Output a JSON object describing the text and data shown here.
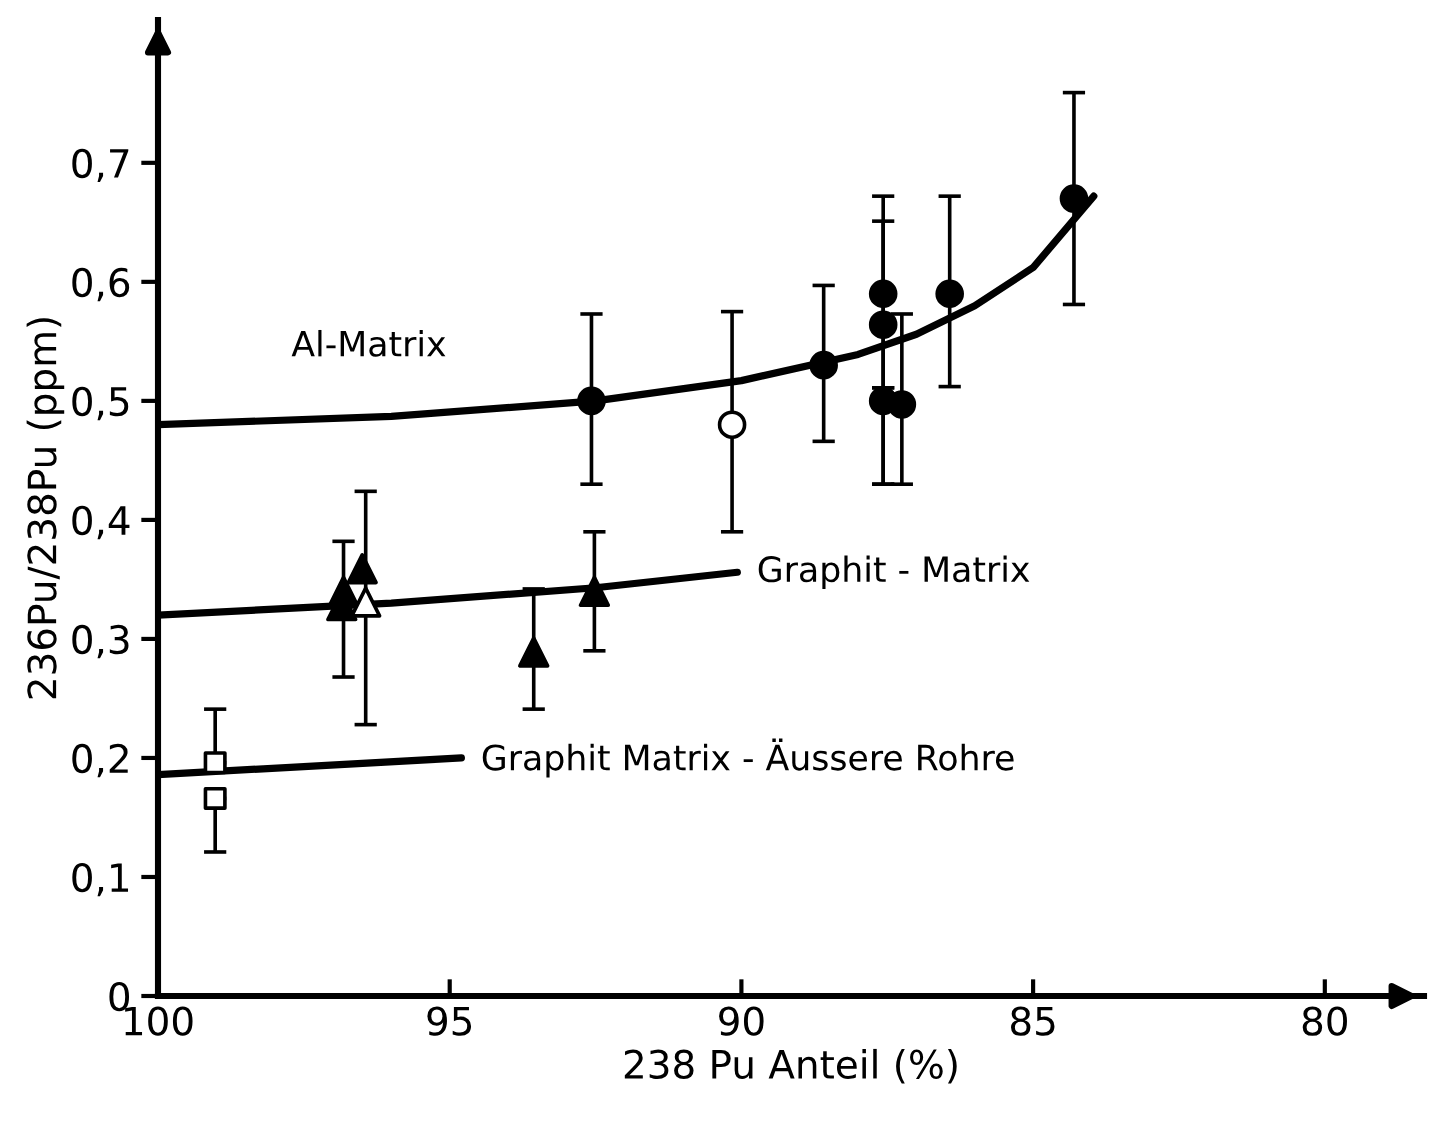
{
  "chart_data": {
    "type": "scatter",
    "xlabel": "238 Pu Anteil (%)",
    "ylabel": "236Pu/238Pu (ppm)",
    "xlim": [
      100,
      78.3
    ],
    "ylim": [
      0,
      0.82
    ],
    "xticks": [
      100,
      95,
      90,
      85,
      80
    ],
    "yticks": [
      0,
      {
        "value": 0.1,
        "label": "0,1"
      },
      {
        "value": 0.2,
        "label": "0,2"
      },
      {
        "value": 0.3,
        "label": "0,3"
      },
      {
        "value": 0.4,
        "label": "0,4"
      },
      {
        "value": 0.5,
        "label": "0,5"
      },
      {
        "value": 0.6,
        "label": "0,6"
      },
      {
        "value": 0.7,
        "label": "0,7"
      }
    ],
    "grid": false,
    "legend": false,
    "series": [
      {
        "type": "line",
        "name": "Al-Matrix",
        "color": "#000000",
        "marker": "none",
        "line_style": "solid",
        "x": [
          100,
          96,
          92.5,
          90,
          88,
          87,
          86,
          85,
          83.96
        ],
        "values": [
          0.48,
          0.487,
          0.5,
          0.517,
          0.539,
          0.556,
          0.58,
          0.612,
          0.672
        ]
      },
      {
        "type": "line",
        "name": "Graphit - Matrix",
        "color": "#000000",
        "marker": "none",
        "line_style": "solid",
        "x": [
          100,
          96,
          92.5,
          90.07
        ],
        "values": [
          0.32,
          0.33,
          0.343,
          0.356
        ]
      },
      {
        "type": "line",
        "name": "Graphit Matrix - Äussere Rohre",
        "color": "#000000",
        "marker": "none",
        "line_style": "solid",
        "x": [
          100,
          94.8
        ],
        "values": [
          0.186,
          0.2
        ]
      },
      {
        "color": "#000000",
        "marker": "circle",
        "x": [
          92.57,
          88.59,
          87.57,
          87.57,
          87.57,
          87.25,
          86.43,
          84.3
        ],
        "values": [
          0.5,
          0.53,
          0.59,
          0.564,
          0.5,
          0.497,
          0.59,
          0.67
        ],
        "errors": [
          [
            0.43,
            0.573
          ],
          [
            0.466,
            0.597
          ],
          [
            0.511,
            0.672
          ],
          [
            0.43,
            0.651
          ],
          [
            0.43,
            0.511
          ],
          [
            0.43,
            0.573
          ],
          [
            0.512,
            0.672
          ],
          [
            0.581,
            0.759
          ]
        ]
      },
      {
        "color": "#ffffff",
        "marker": "circle",
        "x": [
          90.16
        ],
        "values": [
          0.48
        ],
        "errors": [
          [
            0.39,
            0.575
          ]
        ]
      },
      {
        "color": "#000000",
        "marker": "triangle",
        "x": [
          96.82,
          96.85,
          96.5,
          93.56,
          92.52
        ],
        "values": [
          0.34,
          0.328,
          0.359,
          0.289,
          0.34
        ],
        "errors": [
          [
            0.268,
            0.382
          ],
          null,
          null,
          [
            0.241,
            0.342
          ],
          [
            0.29,
            0.39
          ]
        ]
      },
      {
        "color": "#ffffff",
        "marker": "triangle",
        "x": [
          96.44
        ],
        "values": [
          0.331
        ],
        "errors": [
          [
            0.228,
            0.424
          ]
        ]
      },
      {
        "color": "#ffffff",
        "marker": "square",
        "x": [
          99.02,
          99.02
        ],
        "values": [
          0.196,
          0.166
        ],
        "errors": [
          [
            0.196,
            0.241
          ],
          [
            0.121,
            0.166
          ]
        ]
      }
    ]
  }
}
